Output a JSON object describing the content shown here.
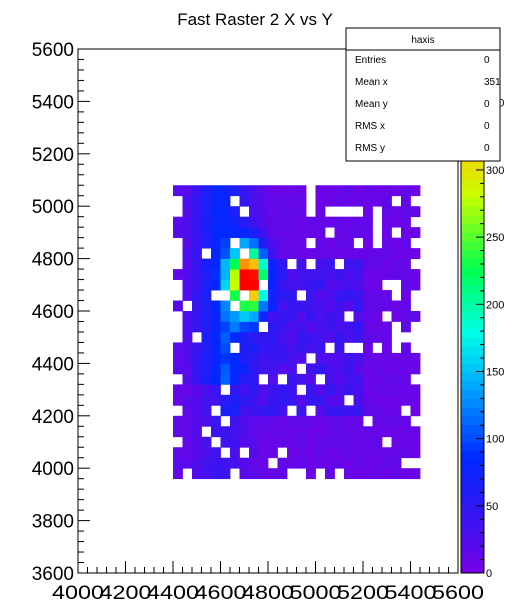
{
  "chart_data": {
    "type": "heatmap",
    "title": "Fast Raster 2 X vs Y",
    "xlabel": "",
    "ylabel": "",
    "xlim": [
      4000,
      5600
    ],
    "ylim": [
      3600,
      5600
    ],
    "x_ticks": [
      "4000",
      "4200",
      "4400",
      "4600",
      "4800",
      "5000",
      "5200",
      "5400",
      "5600"
    ],
    "y_ticks": [
      "3600",
      "3800",
      "4000",
      "4200",
      "4400",
      "4600",
      "4800",
      "5000",
      "5200",
      "5400",
      "5600"
    ],
    "z_ticks": [
      "0",
      "50",
      "100",
      "150",
      "200",
      "250",
      "300",
      "350"
    ],
    "z_range": [
      0,
      390
    ],
    "bin_width": 40,
    "occupied_region": {
      "x": [
        4400,
        5440
      ],
      "y": [
        3960,
        5080
      ]
    },
    "hot_spot": {
      "x": 4720,
      "y": 4720,
      "peak": 390
    },
    "stats_box": {
      "title": "haxis",
      "rows": [
        {
          "label": "Entries",
          "value": "0"
        },
        {
          "label": "Mean x",
          "value": "351"
        },
        {
          "label": "Mean y",
          "value": "0"
        },
        {
          "label": "RMS x",
          "value": "0"
        },
        {
          "label": "RMS y",
          "value": "0"
        }
      ]
    }
  }
}
